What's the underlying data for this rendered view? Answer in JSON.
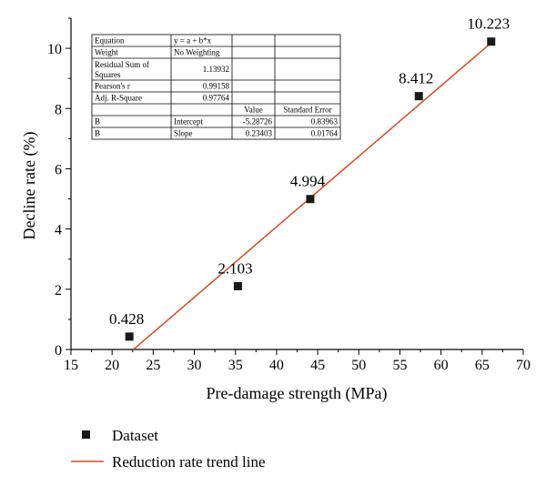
{
  "chart_data": {
    "type": "scatter",
    "xlabel": "Pre-damage strength (MPa)",
    "ylabel": "Decline rate (%)",
    "xlim": [
      15,
      70
    ],
    "ylim": [
      0,
      11
    ],
    "xticks": [
      15,
      20,
      25,
      30,
      35,
      40,
      45,
      50,
      55,
      60,
      65,
      70
    ],
    "yticks": [
      0,
      2,
      4,
      6,
      8,
      10
    ],
    "series": [
      {
        "name": "Dataset",
        "marker": "square",
        "color": "#1a1a1a",
        "points": [
          {
            "x": 22.1,
            "y": 0.428,
            "label": "0.428"
          },
          {
            "x": 35.3,
            "y": 2.103,
            "label": "2.103"
          },
          {
            "x": 44.1,
            "y": 4.994,
            "label": "4.994"
          },
          {
            "x": 57.3,
            "y": 8.412,
            "label": "8.412"
          },
          {
            "x": 66.1,
            "y": 10.223,
            "label": "10.223"
          }
        ]
      }
    ],
    "trend_line": {
      "name": "Reduction rate trend line",
      "color": "#d94a1e",
      "intercept": -5.28726,
      "slope": 0.23403
    },
    "grid": false,
    "legend_placement": "bottom-left",
    "fit_table": {
      "rows": [
        [
          "Equation",
          "y = a + b*x",
          "",
          ""
        ],
        [
          "Weight",
          "No Weighting",
          "",
          ""
        ],
        [
          "Residual Sum of Squares",
          "1.13932",
          "",
          ""
        ],
        [
          "Pearson's r",
          "0.99158",
          "",
          ""
        ],
        [
          "Adj. R-Square",
          "0.97764",
          "",
          ""
        ],
        [
          "",
          "",
          "Value",
          "Standard Error"
        ],
        [
          "B",
          "Intercept",
          "-5.28726",
          "0.83963"
        ],
        [
          "B",
          "Slope",
          "0.23403",
          "0.01764"
        ]
      ]
    }
  },
  "legend": {
    "dataset_label": "Dataset",
    "trend_label": "Reduction rate trend line"
  }
}
